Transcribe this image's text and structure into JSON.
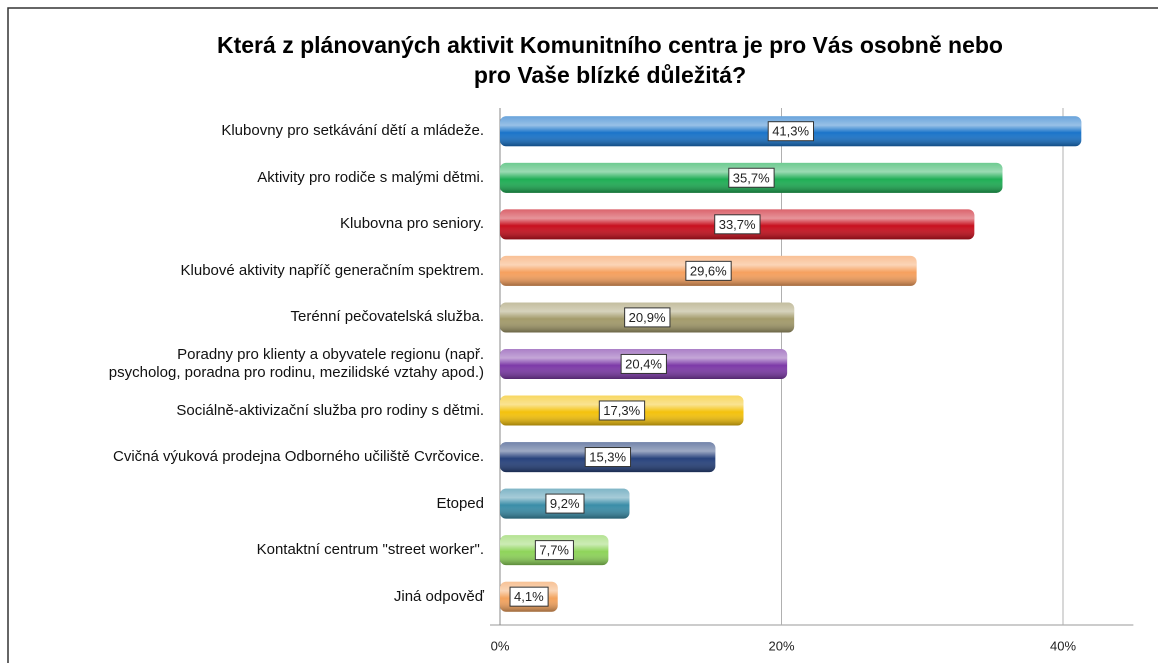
{
  "chart_data": {
    "type": "bar",
    "orientation": "horizontal",
    "title": "Která z plánovaných aktivit Komunitního centra je pro Vás osobně nebo\npro Vaše blízké důležitá?",
    "categories": [
      "Klubovny pro setkávání dětí a mládeže.",
      "Aktivity pro rodiče s malými dětmi.",
      "Klubovna pro seniory.",
      "Klubové aktivity napříč generačním spektrem.",
      "Terénní pečovatelská služba.",
      "Poradny pro klienty a obyvatele regionu (např.\npsycholog, poradna pro rodinu, mezilidské vztahy apod.)",
      "Sociálně-aktivizační služba pro rodiny s dětmi.",
      "Cvičná výuková prodejna Odborného učiliště Cvrčovice.",
      "Etoped",
      "Kontaktní centrum \"street worker\".",
      "Jiná odpověď"
    ],
    "values": [
      41.3,
      35.7,
      33.7,
      29.6,
      20.9,
      20.4,
      17.3,
      15.3,
      9.2,
      7.7,
      4.1
    ],
    "value_labels": [
      "41,3%",
      "35,7%",
      "33,7%",
      "29,6%",
      "20,9%",
      "20,4%",
      "17,3%",
      "15,3%",
      "9,2%",
      "7,7%",
      "4,1%"
    ],
    "colors": [
      "#1a74c9",
      "#1fae55",
      "#c8101e",
      "#f6a05e",
      "#a39b6b",
      "#7d3aa8",
      "#f4c20d",
      "#27427c",
      "#3a8da8",
      "#8ed45a",
      "#f3a35e"
    ],
    "xlim": [
      0,
      45
    ],
    "xticks": [
      {
        "value": 0,
        "label": "0%"
      },
      {
        "value": 20,
        "label": "20%"
      },
      {
        "value": 40,
        "label": "40%"
      }
    ],
    "grid": true
  }
}
